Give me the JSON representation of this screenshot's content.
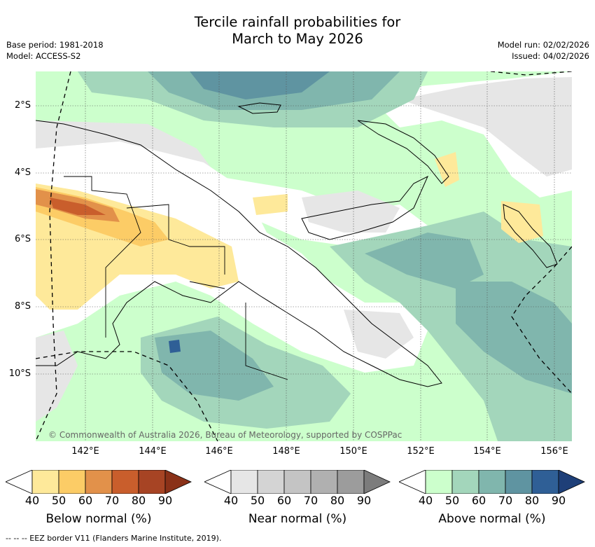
{
  "title": {
    "line1": "Tercile rainfall probabilities for",
    "line2": "March to May 2026"
  },
  "meta": {
    "base_period": "Base period: 1981-2018",
    "model": "Model: ACCESS-S2",
    "model_run": "Model run: 02/02/2026",
    "issued": "Issued: 04/02/2026"
  },
  "map": {
    "lat_ticks": [
      "2°S",
      "4°S",
      "6°S",
      "8°S",
      "10°S"
    ],
    "lon_ticks": [
      "142°E",
      "144°E",
      "146°E",
      "148°E",
      "150°E",
      "152°E",
      "154°E",
      "156°E"
    ],
    "copyright": "© Commonwealth of Australia 2026, Bureau of Meteorology, supported by COSPPac"
  },
  "legend": {
    "below": {
      "title": "Below normal (%)",
      "labels": [
        "40",
        "50",
        "60",
        "70",
        "80",
        "90"
      ],
      "colors": [
        "#ffffff",
        "#fee99a",
        "#fccc66",
        "#e2914a",
        "#c95e2c",
        "#a74424",
        "#8a3118"
      ]
    },
    "near": {
      "title": "Near normal (%)",
      "labels": [
        "40",
        "50",
        "60",
        "70",
        "80",
        "90"
      ],
      "colors": [
        "#ffffff",
        "#e6e6e6",
        "#d4d4d4",
        "#c4c4c4",
        "#b0b0b0",
        "#9c9c9c",
        "#7c7c7c"
      ]
    },
    "above": {
      "title": "Above normal (%)",
      "labels": [
        "40",
        "50",
        "60",
        "70",
        "80",
        "90"
      ],
      "colors": [
        "#ffffff",
        "#ccffcc",
        "#a3d6bb",
        "#80b6ad",
        "#5f94a1",
        "#2f5f96",
        "#1e3f78"
      ]
    }
  },
  "footer": "-- -- -- EEZ border V11 (Flanders Marine Institute, 2019)."
}
